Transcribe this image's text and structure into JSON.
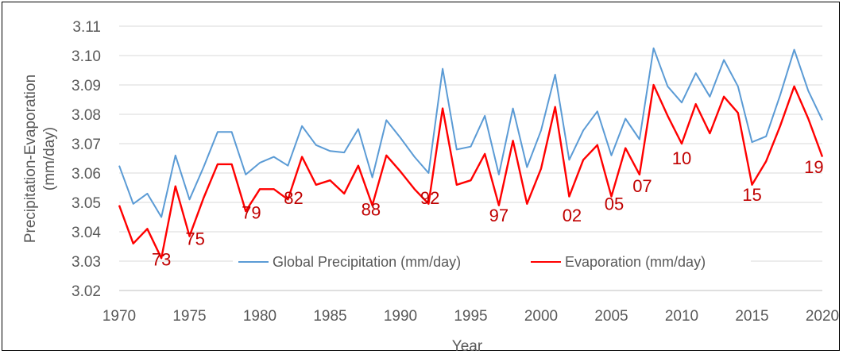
{
  "chart_data": {
    "type": "line",
    "title": "",
    "xlabel": "Year",
    "ylabel_lines": [
      "Precipitation-Evaporation",
      "(mm/day)"
    ],
    "xlim": [
      1970,
      2020
    ],
    "ylim": [
      3.02,
      3.11
    ],
    "xticks": [
      1970,
      1975,
      1980,
      1985,
      1990,
      1995,
      2000,
      2005,
      2010,
      2015,
      2020
    ],
    "yticks": [
      "3.02",
      "3.03",
      "3.04",
      "3.05",
      "3.06",
      "3.07",
      "3.08",
      "3.09",
      "3.10",
      "3.11"
    ],
    "grid": "horizontal",
    "legend_position": "bottom-center",
    "x": [
      1970,
      1971,
      1972,
      1973,
      1974,
      1975,
      1976,
      1977,
      1978,
      1979,
      1980,
      1981,
      1982,
      1983,
      1984,
      1985,
      1986,
      1987,
      1988,
      1989,
      1990,
      1991,
      1992,
      1993,
      1994,
      1995,
      1996,
      1997,
      1998,
      1999,
      2000,
      2001,
      2002,
      2003,
      2004,
      2005,
      2006,
      2007,
      2008,
      2009,
      2010,
      2011,
      2012,
      2013,
      2014,
      2015,
      2016,
      2017,
      2018,
      2019,
      2020
    ],
    "series": [
      {
        "name": "Global Precipitation (mm/day)",
        "color": "#5b9bd5",
        "values": [
          3.0625,
          3.0495,
          3.053,
          3.045,
          3.066,
          3.051,
          3.062,
          3.074,
          3.074,
          3.0595,
          3.0635,
          3.0655,
          3.0625,
          3.076,
          3.0695,
          3.0675,
          3.067,
          3.075,
          3.0585,
          3.078,
          3.072,
          3.0655,
          3.06,
          3.0955,
          3.068,
          3.069,
          3.0795,
          3.0595,
          3.082,
          3.062,
          3.0745,
          3.0935,
          3.0645,
          3.0745,
          3.081,
          3.066,
          3.0785,
          3.0715,
          3.1025,
          3.0895,
          3.084,
          3.094,
          3.086,
          3.0985,
          3.0895,
          3.0705,
          3.0725,
          3.0865,
          3.102,
          3.088,
          3.078
        ]
      },
      {
        "name": "Evaporation (mm/day)",
        "color": "#ff0000",
        "values": [
          3.049,
          3.036,
          3.041,
          3.031,
          3.0555,
          3.0385,
          3.0515,
          3.063,
          3.063,
          3.047,
          3.0545,
          3.0545,
          3.051,
          3.0655,
          3.056,
          3.0575,
          3.053,
          3.0625,
          3.049,
          3.066,
          3.0605,
          3.0545,
          3.0495,
          3.082,
          3.056,
          3.0575,
          3.0665,
          3.049,
          3.071,
          3.0495,
          3.0615,
          3.0825,
          3.052,
          3.0645,
          3.0695,
          3.052,
          3.0685,
          3.0595,
          3.09,
          3.0795,
          3.07,
          3.0835,
          3.0735,
          3.086,
          3.0805,
          3.056,
          3.064,
          3.076,
          3.0895,
          3.0785,
          3.0655
        ]
      }
    ],
    "annotations": [
      {
        "text": "73",
        "x": 1973,
        "y": 3.0285
      },
      {
        "text": "75",
        "x": 1975.4,
        "y": 3.0355
      },
      {
        "text": "79",
        "x": 1979.4,
        "y": 3.0445
      },
      {
        "text": "82",
        "x": 1982.4,
        "y": 3.0495
      },
      {
        "text": "88",
        "x": 1987.9,
        "y": 3.0455
      },
      {
        "text": "92",
        "x": 1992.1,
        "y": 3.0495
      },
      {
        "text": "97",
        "x": 1997,
        "y": 3.0435
      },
      {
        "text": "02",
        "x": 2002.2,
        "y": 3.0435
      },
      {
        "text": "05",
        "x": 2005.2,
        "y": 3.0475
      },
      {
        "text": "07",
        "x": 2007.2,
        "y": 3.0535
      },
      {
        "text": "10",
        "x": 2010,
        "y": 3.063
      },
      {
        "text": "15",
        "x": 2015,
        "y": 3.0505
      },
      {
        "text": "19",
        "x": 2019.4,
        "y": 3.06
      }
    ]
  }
}
